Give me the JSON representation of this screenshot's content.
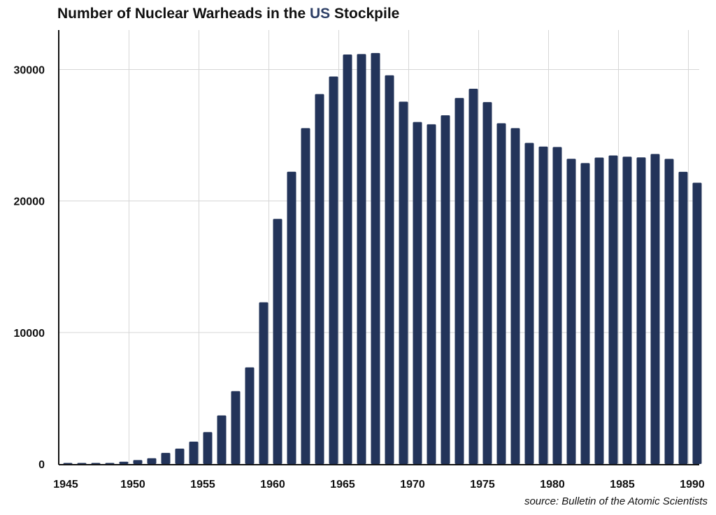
{
  "chart_data": {
    "type": "bar",
    "title_parts": [
      "Number of Nuclear Warheads in the ",
      "US",
      " Stockpile"
    ],
    "highlight_color": "#2d3f66",
    "bar_color": "#23345a",
    "grid": true,
    "xlabel": "",
    "ylabel": "",
    "ylim": [
      0,
      33000
    ],
    "yticks": [
      "0",
      "10000",
      "20000",
      "30000"
    ],
    "ytick_values": [
      0,
      10000,
      20000,
      30000
    ],
    "xticks": [
      "1945",
      "1950",
      "1955",
      "1960",
      "1965",
      "1970",
      "1975",
      "1980",
      "1985",
      "1990"
    ],
    "categories": [
      1945,
      1946,
      1947,
      1948,
      1949,
      1950,
      1951,
      1952,
      1953,
      1954,
      1955,
      1956,
      1957,
      1958,
      1959,
      1960,
      1961,
      1962,
      1963,
      1964,
      1965,
      1966,
      1967,
      1968,
      1969,
      1970,
      1971,
      1972,
      1973,
      1974,
      1975,
      1976,
      1977,
      1978,
      1979,
      1980,
      1981,
      1982,
      1983,
      1984,
      1985,
      1986,
      1987,
      1988,
      1989,
      1990
    ],
    "values": [
      2,
      9,
      13,
      50,
      170,
      299,
      438,
      841,
      1169,
      1703,
      2422,
      3692,
      5543,
      7345,
      12298,
      18638,
      22229,
      25540,
      28133,
      29463,
      31139,
      31175,
      31255,
      29561,
      27552,
      26008,
      25830,
      26516,
      27835,
      28537,
      27519,
      25914,
      25542,
      24418,
      24138,
      24104,
      23208,
      22886,
      23305,
      23459,
      23368,
      23317,
      23575,
      23205,
      22217,
      21392
    ]
  },
  "source": "source: Bulletin of the Atomic Scientists"
}
